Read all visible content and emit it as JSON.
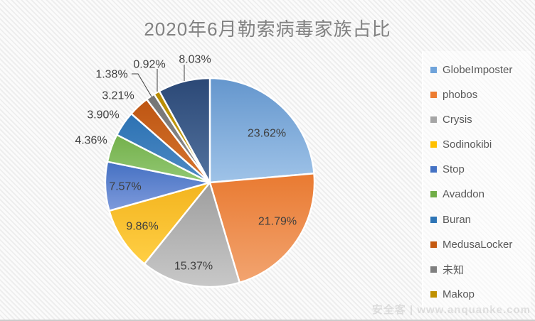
{
  "title": "2020年6月勒索病毒家族占比",
  "watermark": "安全客 | www.anquanke.com",
  "colors": {
    "label_text": "#3F3F3F",
    "title_text": "#828282",
    "legend_text": "#595959",
    "leader_line": "#404040",
    "slice_gap": "#FFFFFF"
  },
  "chart_data": {
    "type": "pie",
    "title": "2020年6月勒索病毒家族占比",
    "unit": "%",
    "direction": "clockwise",
    "start_angle_deg": 0,
    "legend_position": "right",
    "grid": false,
    "categories": [
      "GlobeImposter",
      "phobos",
      "Crysis",
      "Sodinokibi",
      "Stop",
      "Avaddon",
      "Buran",
      "MedusaLocker",
      "未知",
      "Makop",
      ""
    ],
    "values": [
      23.62,
      21.79,
      15.37,
      9.86,
      7.57,
      4.36,
      3.9,
      3.21,
      1.38,
      0.92,
      8.03
    ],
    "slices": [
      {
        "name": "GlobeImposter",
        "value": 23.62,
        "label": "23.62%",
        "color_top": "#6496CD",
        "color_bottom": "#9FC3E8",
        "label_placement": "inside"
      },
      {
        "name": "phobos",
        "value": 21.79,
        "label": "21.79%",
        "color_top": "#E97A31",
        "color_bottom": "#F2A470",
        "label_placement": "inside"
      },
      {
        "name": "Crysis",
        "value": 15.37,
        "label": "15.37%",
        "color_top": "#9E9E9E",
        "color_bottom": "#C8C8C8",
        "label_placement": "inside"
      },
      {
        "name": "Sodinokibi",
        "value": 9.86,
        "label": "9.86%",
        "color_top": "#F3B41E",
        "color_bottom": "#FFCF45",
        "label_placement": "inside"
      },
      {
        "name": "Stop",
        "value": 7.57,
        "label": "7.57%",
        "color_top": "#4470C2",
        "color_bottom": "#7F9BDC",
        "label_placement": "inside"
      },
      {
        "name": "Avaddon",
        "value": 4.36,
        "label": "4.36%",
        "color_top": "#74B04B",
        "color_bottom": "#92C873",
        "label_placement": "outside"
      },
      {
        "name": "Buran",
        "value": 3.9,
        "label": "3.90%",
        "color_top": "#2C72B3",
        "color_bottom": "#4E8AC4",
        "label_placement": "outside"
      },
      {
        "name": "MedusaLocker",
        "value": 3.21,
        "label": "3.21%",
        "color_top": "#BE5512",
        "color_bottom": "#D5752F",
        "label_placement": "outside"
      },
      {
        "name": "未知",
        "value": 1.38,
        "label": "1.38%",
        "color_top": "#747474",
        "color_bottom": "#8F8F8F",
        "label_placement": "leader"
      },
      {
        "name": "Makop",
        "value": 0.92,
        "label": "0.92%",
        "color_top": "#B78A00",
        "color_bottom": "#CCAA1E",
        "label_placement": "leader"
      },
      {
        "name": "",
        "value": 8.03,
        "label": "8.03%",
        "color_top": "#2B4876",
        "color_bottom": "#53739F",
        "label_placement": "leader"
      }
    ],
    "legend": [
      {
        "label": "GlobeImposter",
        "color": "#6FA3DA"
      },
      {
        "label": "phobos",
        "color": "#ED7D31"
      },
      {
        "label": "Crysis",
        "color": "#A5A5A5"
      },
      {
        "label": "Sodinokibi",
        "color": "#FFC000"
      },
      {
        "label": "Stop",
        "color": "#4472C4"
      },
      {
        "label": "Avaddon",
        "color": "#70AD47"
      },
      {
        "label": "Buran",
        "color": "#2E75B6"
      },
      {
        "label": "MedusaLocker",
        "color": "#C55A11"
      },
      {
        "label": "未知",
        "color": "#7F7F7F"
      },
      {
        "label": "Makop",
        "color": "#BF9000"
      }
    ]
  }
}
